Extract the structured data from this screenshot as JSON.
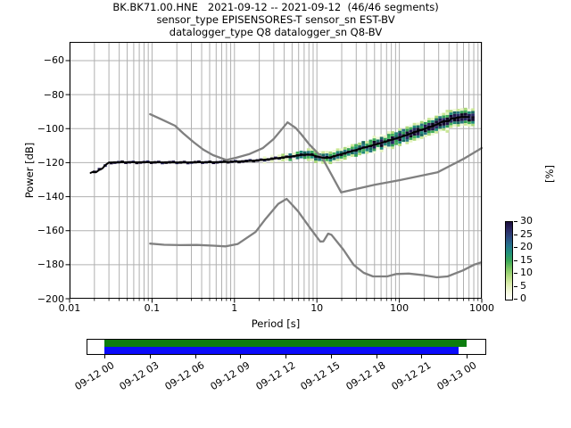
{
  "header": {
    "line1": "BK.BK71.00.HNE   2021-09-12 -- 2021-09-12  (46/46 segments)",
    "line2": "sensor_type EPISENSORES-T sensor_sn EST-BV",
    "line3": "datalogger_type Q8 datalogger_sn Q8-BV"
  },
  "axes": {
    "xlabel": "Period [s]",
    "ylabel": "Power [dB]",
    "xticklabels": [
      "0.01",
      "0.1",
      "1",
      "10",
      "100",
      "1000"
    ],
    "yticklabels": [
      "−60",
      "−80",
      "−100",
      "−120",
      "−140",
      "−160",
      "−180",
      "−200"
    ],
    "colorbar_label": "[%]",
    "colorbar_ticklabels": [
      "0",
      "5",
      "10",
      "15",
      "20",
      "25",
      "30"
    ]
  },
  "chart_data": {
    "type": "heatmap",
    "title": "BK.BK71.00.HNE 2021-09-12 -- 2021-09-12 (46/46 segments)",
    "xlabel": "Period [s]",
    "ylabel": "Power [dB]",
    "x_scale": "log",
    "xlim": [
      0.01,
      1000
    ],
    "ylim": [
      -200,
      -49
    ],
    "xticks": [
      0.01,
      0.1,
      1,
      10,
      100,
      1000
    ],
    "yticks": [
      -60,
      -80,
      -100,
      -120,
      -140,
      -160,
      -180,
      -200
    ],
    "grid": true,
    "grid_color": "#b0b0b0",
    "colorbar": {
      "label": "[%]",
      "ticks": [
        0,
        5,
        10,
        15,
        20,
        25,
        30
      ],
      "gradient_bottom_to_top": [
        "#ffffff",
        "#f3f8dc",
        "#dcedae",
        "#b2dc82",
        "#7cc563",
        "#3aa757",
        "#21917a",
        "#25718c",
        "#2c4a80",
        "#2b2a64",
        "#1c0e3c"
      ]
    },
    "series": [
      {
        "name": "psd-mode",
        "color": "#000000",
        "width": 2,
        "points": [
          [
            0.018,
            -126
          ],
          [
            0.019,
            -125.5
          ],
          [
            0.021,
            -125.6
          ],
          [
            0.023,
            -124.2
          ],
          [
            0.025,
            -123.4
          ],
          [
            0.027,
            -121.5
          ],
          [
            0.03,
            -119.9
          ],
          [
            0.05,
            -119.8
          ],
          [
            0.1,
            -119.8
          ],
          [
            0.2,
            -119.9
          ],
          [
            0.4,
            -119.8
          ],
          [
            0.7,
            -119.7
          ],
          [
            1.0,
            -119.4
          ],
          [
            1.4,
            -119.1
          ],
          [
            1.9,
            -118.7
          ],
          [
            2.5,
            -118.1
          ],
          [
            3.2,
            -117.5
          ],
          [
            4.0,
            -116.9
          ],
          [
            5.0,
            -116.3
          ],
          [
            6.3,
            -115.6
          ],
          [
            7.5,
            -115.2
          ],
          [
            8.8,
            -115.5
          ],
          [
            10.0,
            -116.3
          ],
          [
            11.5,
            -117.0
          ],
          [
            13.0,
            -117.2
          ],
          [
            14.5,
            -116.9
          ],
          [
            16.5,
            -116.1
          ],
          [
            19.0,
            -115.2
          ],
          [
            22.0,
            -114.4
          ],
          [
            26.0,
            -113.4
          ],
          [
            31.0,
            -112.3
          ],
          [
            37.0,
            -111.2
          ],
          [
            44.0,
            -110.2
          ],
          [
            52.0,
            -109.3
          ],
          [
            62.0,
            -108.2
          ],
          [
            74.0,
            -107.1
          ],
          [
            88.0,
            -106.0
          ],
          [
            105.0,
            -104.9
          ],
          [
            125.0,
            -103.6
          ],
          [
            150.0,
            -102.2
          ],
          [
            180.0,
            -100.9
          ],
          [
            215.0,
            -99.7
          ],
          [
            255.0,
            -98.5
          ],
          [
            300.0,
            -97.0
          ],
          [
            340.0,
            -95.6
          ],
          [
            400.0,
            -95.5
          ],
          [
            430.0,
            -94.0
          ],
          [
            470.0,
            -93.9
          ],
          [
            520.0,
            -93.3
          ],
          [
            600.0,
            -93.2
          ],
          [
            700.0,
            -93.2
          ]
        ]
      },
      {
        "name": "noise-model-high",
        "color": "#808080",
        "width": 2.3,
        "points": [
          [
            0.095,
            -91.5
          ],
          [
            0.13,
            -94.5
          ],
          [
            0.19,
            -98.3
          ],
          [
            0.24,
            -102.8
          ],
          [
            0.32,
            -108.0
          ],
          [
            0.42,
            -112.4
          ],
          [
            0.55,
            -115.6
          ],
          [
            0.8,
            -118.4
          ],
          [
            1.05,
            -117.1
          ],
          [
            1.5,
            -115.0
          ],
          [
            2.2,
            -111.5
          ],
          [
            3.0,
            -106.0
          ],
          [
            4.4,
            -96.3
          ],
          [
            5.5,
            -99.5
          ],
          [
            6.5,
            -103.5
          ],
          [
            8.0,
            -109.0
          ],
          [
            11.6,
            -117.2
          ],
          [
            15.0,
            -127.0
          ],
          [
            19.7,
            -137.5
          ],
          [
            50.0,
            -133.0
          ],
          [
            100.0,
            -130.3
          ],
          [
            290.0,
            -125.7
          ],
          [
            600.0,
            -117.8
          ],
          [
            1000.0,
            -111.4
          ]
        ]
      },
      {
        "name": "noise-model-low",
        "color": "#808080",
        "width": 2.3,
        "points": [
          [
            0.095,
            -167.6
          ],
          [
            0.14,
            -168.3
          ],
          [
            0.22,
            -168.5
          ],
          [
            0.35,
            -168.4
          ],
          [
            0.55,
            -168.8
          ],
          [
            0.78,
            -169.2
          ],
          [
            1.1,
            -167.8
          ],
          [
            1.8,
            -160.8
          ],
          [
            2.4,
            -152.9
          ],
          [
            3.4,
            -144.2
          ],
          [
            4.3,
            -141.3
          ],
          [
            5.9,
            -148.5
          ],
          [
            8.4,
            -158.9
          ],
          [
            11.0,
            -166.4
          ],
          [
            12.0,
            -166.3
          ],
          [
            13.7,
            -161.7
          ],
          [
            15.0,
            -162.4
          ],
          [
            21.0,
            -171.2
          ],
          [
            28.0,
            -180.2
          ],
          [
            37.0,
            -184.8
          ],
          [
            48.0,
            -186.9
          ],
          [
            71.0,
            -186.9
          ],
          [
            92.0,
            -185.5
          ],
          [
            130.0,
            -185.2
          ],
          [
            200.0,
            -186.2
          ],
          [
            285.0,
            -187.4
          ],
          [
            385.0,
            -186.9
          ],
          [
            590.0,
            -183.4
          ],
          [
            815.0,
            -179.9
          ],
          [
            975.0,
            -178.7
          ]
        ]
      }
    ],
    "histogram": {
      "note": "2D PPSD probability cells clustered around psd-mode line",
      "p_start": 0.032,
      "p_end": 780,
      "n_columns": 100,
      "cell_db": 1.5,
      "spread_profile_db": [
        [
          0.032,
          0.8
        ],
        [
          0.9,
          0.85
        ],
        [
          1.3,
          1.2
        ],
        [
          3,
          1.6
        ],
        [
          6,
          2.3
        ],
        [
          8,
          3.3
        ],
        [
          12,
          3.6
        ],
        [
          20,
          3.6
        ],
        [
          40,
          4.3
        ],
        [
          90,
          4.7
        ],
        [
          200,
          5.2
        ],
        [
          420,
          5.7
        ],
        [
          560,
          5.3
        ],
        [
          780,
          4.8
        ]
      ],
      "extra_columns": [
        [
          0.02,
          0.9
        ],
        [
          0.023,
          1.1
        ],
        [
          0.027,
          1.0
        ]
      ],
      "palette_core": [
        "#140b33",
        "#221a4e",
        "#2a2a66",
        "#0d071f"
      ],
      "palette_mid": [
        "#2e9e54",
        "#1f8a78",
        "#27777f",
        "#3fae58",
        "#17695f"
      ],
      "palette_outer": [
        "#c9e796",
        "#e6f4c0",
        "#a9d878",
        "#f2f9da"
      ]
    },
    "timeline": {
      "tick_labels": [
        "09-12 00",
        "09-12 03",
        "09-12 06",
        "09-12 09",
        "09-12 12",
        "09-12 15",
        "09-12 18",
        "09-12 21",
        "09-13 00"
      ],
      "bars": [
        {
          "name": "coverage-processed",
          "color": "#0d7d0f",
          "start_frac": 0.0,
          "end_frac": 1.0,
          "row": 0
        },
        {
          "name": "coverage-data",
          "color": "#0a0afa",
          "start_frac": 0.0,
          "end_frac": 0.978,
          "row": 1
        }
      ]
    }
  }
}
